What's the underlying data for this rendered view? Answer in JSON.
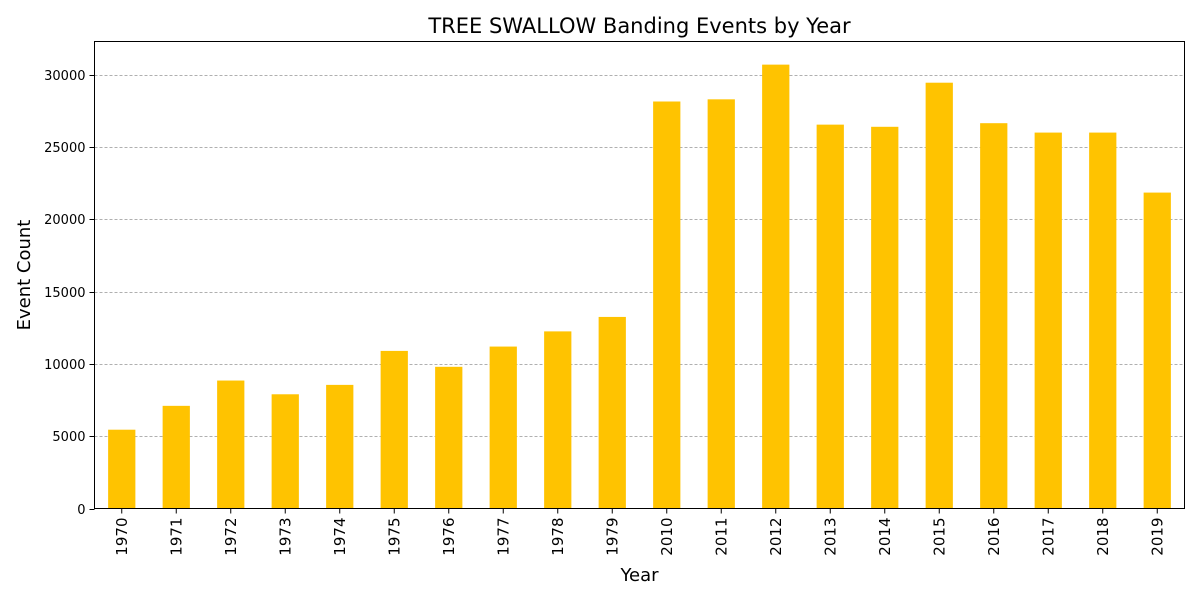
{
  "chart_data": {
    "type": "bar",
    "title": "TREE SWALLOW Banding Events by Year",
    "xlabel": "Year",
    "ylabel": "Event Count",
    "categories": [
      "1970",
      "1971",
      "1972",
      "1973",
      "1974",
      "1975",
      "1976",
      "1977",
      "1978",
      "1979",
      "2010",
      "2011",
      "2012",
      "2013",
      "2014",
      "2015",
      "2016",
      "2017",
      "2018",
      "2019"
    ],
    "values": [
      5450,
      7100,
      8850,
      7900,
      8550,
      10900,
      9800,
      11200,
      12250,
      13250,
      28150,
      28300,
      30700,
      26550,
      26400,
      29450,
      26650,
      26000,
      26000,
      21850
    ],
    "ylim": [
      0,
      32300
    ],
    "yticks": [
      0,
      5000,
      10000,
      15000,
      20000,
      25000,
      30000
    ],
    "grid": "y-dashed",
    "legend": "none",
    "bar_color": "#ffc300",
    "grid_color": "#b0b0b0"
  }
}
